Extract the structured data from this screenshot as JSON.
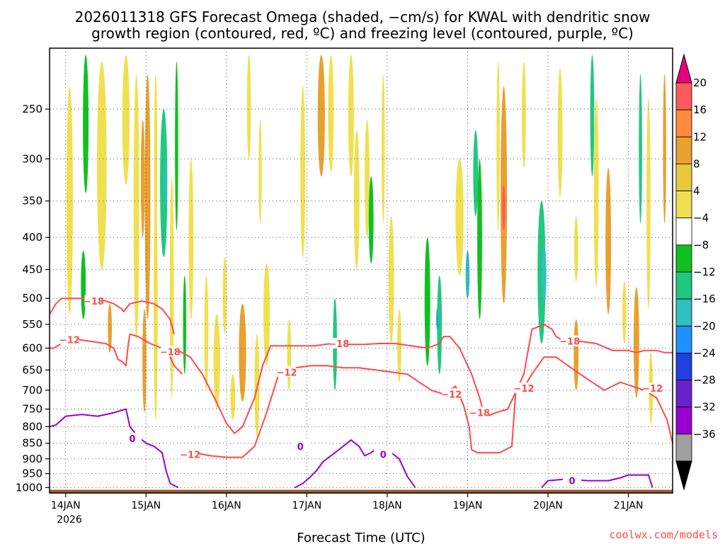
{
  "chart_data": {
    "type": "heatmap",
    "title_line1": "2026011318 GFS Forecast Omega (shaded, −cm/s) for KWAL with dendritic snow",
    "title_line2": "growth region (contoured, red, ºC) and freezing level (contoured, purple, ºC)",
    "xlabel": "Forecast Time (UTC)",
    "x_ticks": [
      "14JAN",
      "15JAN",
      "16JAN",
      "17JAN",
      "18JAN",
      "19JAN",
      "20JAN",
      "21JAN"
    ],
    "x_year": "2026",
    "x_range_days": [
      -0.2,
      7.55
    ],
    "y_ticks": [
      "250",
      "300",
      "350",
      "400",
      "450",
      "500",
      "550",
      "600",
      "650",
      "700",
      "750",
      "800",
      "850",
      "900",
      "950",
      "1000"
    ],
    "y_values": [
      250,
      300,
      350,
      400,
      450,
      500,
      550,
      600,
      650,
      700,
      750,
      800,
      850,
      900,
      950,
      1000
    ],
    "y_range_hpa": [
      200,
      1020
    ],
    "colorbar": {
      "labels": [
        "20",
        "16",
        "12",
        "8",
        "4",
        "−4",
        "−8",
        "−12",
        "−16",
        "−20",
        "−24",
        "−28",
        "−32",
        "−36"
      ],
      "colors": [
        "#ff5a5a",
        "#ff8a3c",
        "#e8a030",
        "#e8c83c",
        "#f0e050",
        "#ffffff",
        "#10c020",
        "#20c880",
        "#30c0c0",
        "#1e90ff",
        "#2040e0",
        "#6a20c8",
        "#9a00d0",
        "#a0a0a0"
      ],
      "top_color": "#e6007e",
      "bottom_color": "#000000"
    },
    "shading": [
      {
        "x": 0.05,
        "p": 380,
        "w": 0.08,
        "h": 300,
        "v": 6
      },
      {
        "x": 0.25,
        "p": 270,
        "w": 0.07,
        "h": 140,
        "v": -6
      },
      {
        "x": 0.22,
        "p": 480,
        "w": 0.06,
        "h": 120,
        "v": -6
      },
      {
        "x": 0.45,
        "p": 330,
        "w": 0.12,
        "h": 240,
        "v": 6
      },
      {
        "x": 0.55,
        "p": 560,
        "w": 0.05,
        "h": 100,
        "v": 10
      },
      {
        "x": 0.75,
        "p": 260,
        "w": 0.09,
        "h": 140,
        "v": 6
      },
      {
        "x": 0.88,
        "p": 400,
        "w": 0.07,
        "h": 360,
        "v": 6
      },
      {
        "x": 0.96,
        "p": 330,
        "w": 0.05,
        "h": 140,
        "v": 10
      },
      {
        "x": 1.02,
        "p": 380,
        "w": 0.07,
        "h": 320,
        "v": 10
      },
      {
        "x": 0.98,
        "p": 640,
        "w": 0.05,
        "h": 240,
        "v": 10
      },
      {
        "x": 1.12,
        "p": 320,
        "w": 0.04,
        "h": 200,
        "v": 6
      },
      {
        "x": 1.22,
        "p": 340,
        "w": 0.09,
        "h": 180,
        "v": -8
      },
      {
        "x": 1.24,
        "p": 330,
        "w": 0.03,
        "h": 60,
        "v": -13
      },
      {
        "x": 1.12,
        "p": 560,
        "w": 0.05,
        "h": 440,
        "v": 6
      },
      {
        "x": 1.32,
        "p": 520,
        "w": 0.05,
        "h": 400,
        "v": 6
      },
      {
        "x": 1.38,
        "p": 300,
        "w": 0.04,
        "h": 180,
        "v": -6
      },
      {
        "x": 1.48,
        "p": 560,
        "w": 0.04,
        "h": 200,
        "v": -6
      },
      {
        "x": 1.56,
        "p": 420,
        "w": 0.06,
        "h": 240,
        "v": 6
      },
      {
        "x": 1.75,
        "p": 580,
        "w": 0.05,
        "h": 240,
        "v": 6
      },
      {
        "x": 1.88,
        "p": 640,
        "w": 0.08,
        "h": 220,
        "v": 6
      },
      {
        "x": 1.98,
        "p": 500,
        "w": 0.05,
        "h": 140,
        "v": 6
      },
      {
        "x": 2.08,
        "p": 720,
        "w": 0.06,
        "h": 120,
        "v": 6
      },
      {
        "x": 2.2,
        "p": 620,
        "w": 0.09,
        "h": 220,
        "v": 10
      },
      {
        "x": 2.28,
        "p": 240,
        "w": 0.05,
        "h": 120,
        "v": 6
      },
      {
        "x": 2.42,
        "p": 320,
        "w": 0.04,
        "h": 120,
        "v": 6
      },
      {
        "x": 2.38,
        "p": 700,
        "w": 0.06,
        "h": 260,
        "v": 6
      },
      {
        "x": 2.5,
        "p": 540,
        "w": 0.08,
        "h": 200,
        "v": 6
      },
      {
        "x": 2.78,
        "p": 620,
        "w": 0.05,
        "h": 160,
        "v": 6
      },
      {
        "x": 2.95,
        "p": 330,
        "w": 0.06,
        "h": 200,
        "v": 6
      },
      {
        "x": 3.18,
        "p": 260,
        "w": 0.09,
        "h": 120,
        "v": 10
      },
      {
        "x": 3.3,
        "p": 240,
        "w": 0.07,
        "h": 150,
        "v": 6
      },
      {
        "x": 3.35,
        "p": 600,
        "w": 0.05,
        "h": 200,
        "v": -8
      },
      {
        "x": 3.55,
        "p": 260,
        "w": 0.07,
        "h": 120,
        "v": 6
      },
      {
        "x": 3.62,
        "p": 360,
        "w": 0.07,
        "h": 180,
        "v": 6
      },
      {
        "x": 3.75,
        "p": 330,
        "w": 0.06,
        "h": 140,
        "v": 6
      },
      {
        "x": 3.8,
        "p": 380,
        "w": 0.06,
        "h": 120,
        "v": -7
      },
      {
        "x": 3.95,
        "p": 300,
        "w": 0.04,
        "h": 160,
        "v": 6
      },
      {
        "x": 4.05,
        "p": 480,
        "w": 0.07,
        "h": 220,
        "v": 6
      },
      {
        "x": 4.15,
        "p": 600,
        "w": 0.05,
        "h": 160,
        "v": 6
      },
      {
        "x": 4.5,
        "p": 520,
        "w": 0.07,
        "h": 240,
        "v": -7
      },
      {
        "x": 4.65,
        "p": 560,
        "w": 0.06,
        "h": 200,
        "v": -8
      },
      {
        "x": 4.62,
        "p": 540,
        "w": 0.02,
        "h": 40,
        "v": -17
      },
      {
        "x": 4.9,
        "p": 380,
        "w": 0.1,
        "h": 160,
        "v": 6
      },
      {
        "x": 5.1,
        "p": 320,
        "w": 0.06,
        "h": 100,
        "v": -8
      },
      {
        "x": 5.15,
        "p": 420,
        "w": 0.06,
        "h": 240,
        "v": -7
      },
      {
        "x": 5.0,
        "p": 460,
        "w": 0.05,
        "h": 80,
        "v": -13
      },
      {
        "x": 5.45,
        "p": 370,
        "w": 0.08,
        "h": 280,
        "v": 10
      },
      {
        "x": 5.45,
        "p": 360,
        "w": 0.04,
        "h": 60,
        "v": 18
      },
      {
        "x": 5.38,
        "p": 300,
        "w": 0.04,
        "h": 180,
        "v": 6
      },
      {
        "x": 5.7,
        "p": 260,
        "w": 0.05,
        "h": 100,
        "v": 6
      },
      {
        "x": 5.92,
        "p": 470,
        "w": 0.1,
        "h": 240,
        "v": -8
      },
      {
        "x": 5.95,
        "p": 460,
        "w": 0.06,
        "h": 100,
        "v": -13
      },
      {
        "x": 6.15,
        "p": 280,
        "w": 0.06,
        "h": 130,
        "v": 6
      },
      {
        "x": 6.35,
        "p": 420,
        "w": 0.05,
        "h": 100,
        "v": 6
      },
      {
        "x": 6.35,
        "p": 620,
        "w": 0.06,
        "h": 160,
        "v": 10
      },
      {
        "x": 6.55,
        "p": 260,
        "w": 0.05,
        "h": 120,
        "v": -8
      },
      {
        "x": 6.6,
        "p": 360,
        "w": 0.06,
        "h": 240,
        "v": 6
      },
      {
        "x": 6.75,
        "p": 420,
        "w": 0.07,
        "h": 220,
        "v": 10
      },
      {
        "x": 6.95,
        "p": 530,
        "w": 0.05,
        "h": 120,
        "v": 6
      },
      {
        "x": 7.1,
        "p": 600,
        "w": 0.07,
        "h": 240,
        "v": 10
      },
      {
        "x": 7.15,
        "p": 300,
        "w": 0.04,
        "h": 160,
        "v": -8
      },
      {
        "x": 7.25,
        "p": 380,
        "w": 0.05,
        "h": 280,
        "v": 6
      },
      {
        "x": 7.28,
        "p": 700,
        "w": 0.05,
        "h": 180,
        "v": 6
      },
      {
        "x": 7.45,
        "p": 300,
        "w": 0.04,
        "h": 160,
        "v": 10
      }
    ],
    "contours": [
      {
        "level": "-18",
        "color": "#ff4a4a",
        "x": [
          -0.2,
          -0.12,
          -0.05,
          0.1,
          0.3,
          0.5,
          0.6,
          0.7,
          0.72,
          0.8,
          0.95,
          1.1,
          1.2,
          1.3,
          1.35
        ],
        "p": [
          530,
          510,
          500,
          500,
          500,
          505,
          510,
          520,
          525,
          510,
          505,
          510,
          520,
          540,
          570
        ]
      },
      {
        "level": "-12",
        "color": "#ff4a4a",
        "x": [
          -0.2,
          -0.15,
          -0.05,
          0.1,
          0.3,
          0.5,
          0.6,
          0.62,
          0.65,
          0.7,
          0.75,
          0.78,
          0.8,
          0.9,
          1.05,
          1.2,
          1.3,
          1.35,
          1.45
        ],
        "p": [
          600,
          600,
          590,
          580,
          585,
          590,
          600,
          610,
          625,
          630,
          640,
          590,
          570,
          575,
          590,
          600,
          620,
          640,
          660
        ]
      },
      {
        "level": "-18",
        "color": "#ff4a4a",
        "x": [
          1.35,
          1.55,
          1.7,
          1.85,
          2.0,
          2.1,
          2.2,
          2.35,
          2.45,
          2.55,
          2.7,
          2.9,
          3.1,
          3.3,
          3.5,
          3.7,
          3.9,
          4.1,
          4.3,
          4.5,
          4.65,
          4.7,
          4.78,
          4.9,
          5.05,
          5.15,
          5.2,
          5.25,
          5.35,
          5.5,
          5.7,
          5.8,
          5.95,
          6.05,
          6.1,
          6.2,
          6.4,
          6.6,
          6.8,
          7.0,
          7.1,
          7.2,
          7.35,
          7.45,
          7.55
        ],
        "p": [
          600,
          620,
          660,
          720,
          790,
          820,
          800,
          720,
          640,
          595,
          595,
          595,
          595,
          590,
          592,
          592,
          590,
          590,
          595,
          600,
          590,
          575,
          575,
          600,
          660,
          720,
          760,
          770,
          760,
          750,
          660,
          560,
          550,
          560,
          575,
          585,
          585,
          590,
          605,
          605,
          610,
          605,
          605,
          610,
          610
        ]
      },
      {
        "level": "-12",
        "color": "#ff4a4a",
        "x": [
          1.6,
          1.8,
          2.0,
          2.2,
          2.35,
          2.5,
          2.65,
          2.85,
          3.05,
          3.25,
          3.45,
          3.65,
          3.85,
          4.05,
          4.25,
          4.4,
          4.55,
          4.7,
          4.85,
          4.95,
          5.02,
          5.05,
          5.12,
          5.2,
          5.4,
          5.55,
          5.6,
          5.68,
          5.8,
          5.95,
          6.1,
          6.25,
          6.4,
          6.55,
          6.7,
          6.9,
          7.05,
          7.2,
          7.35,
          7.48,
          7.55
        ],
        "p": [
          880,
          890,
          895,
          895,
          860,
          760,
          660,
          645,
          640,
          640,
          645,
          645,
          650,
          655,
          660,
          680,
          700,
          710,
          690,
          740,
          800,
          870,
          880,
          880,
          880,
          860,
          700,
          700,
          660,
          620,
          620,
          640,
          660,
          680,
          700,
          680,
          690,
          700,
          720,
          780,
          850
        ]
      },
      {
        "level": "0",
        "color": "#9a00d0",
        "x": [
          -0.2,
          -0.12,
          0.0,
          0.2,
          0.4,
          0.6,
          0.75,
          0.8,
          0.9,
          1.0,
          1.1,
          1.2,
          1.25,
          1.3,
          1.4
        ],
        "p": [
          800,
          795,
          770,
          765,
          770,
          760,
          750,
          800,
          830,
          850,
          860,
          880,
          940,
          985,
          1000
        ]
      },
      {
        "level": "0",
        "color": "#9a00d0",
        "x": [
          2.85,
          2.95,
          3.05,
          3.12,
          3.2,
          3.35,
          3.45,
          3.55,
          3.65,
          3.72,
          3.8,
          3.85,
          3.9,
          4.05,
          4.15,
          4.25,
          4.35
        ],
        "p": [
          1000,
          985,
          960,
          940,
          910,
          880,
          860,
          840,
          860,
          890,
          880,
          870,
          885,
          880,
          900,
          960,
          1000
        ]
      },
      {
        "level": "0",
        "color": "#9a00d0",
        "x": [
          5.92,
          6.0,
          6.2,
          6.5,
          6.75,
          6.9,
          7.0,
          7.25,
          7.3
        ],
        "p": [
          1000,
          975,
          970,
          975,
          975,
          965,
          955,
          955,
          1000
        ]
      }
    ],
    "contour_labels": [
      {
        "text": "−18",
        "color": "#ff4a4a",
        "x": 0.35,
        "p": 505
      },
      {
        "text": "−12",
        "color": "#ff4a4a",
        "x": 0.05,
        "p": 582
      },
      {
        "text": "−18",
        "color": "#ff4a4a",
        "x": 1.3,
        "p": 608
      },
      {
        "text": "−12",
        "color": "#ff4a4a",
        "x": 1.55,
        "p": 885
      },
      {
        "text": "−12",
        "color": "#ff4a4a",
        "x": 2.75,
        "p": 655
      },
      {
        "text": "−18",
        "color": "#ff4a4a",
        "x": 3.4,
        "p": 590
      },
      {
        "text": "−12",
        "color": "#ff4a4a",
        "x": 4.8,
        "p": 710
      },
      {
        "text": "−18",
        "color": "#ff4a4a",
        "x": 5.15,
        "p": 760
      },
      {
        "text": "−12",
        "color": "#ff4a4a",
        "x": 5.7,
        "p": 695
      },
      {
        "text": "−18",
        "color": "#ff4a4a",
        "x": 6.27,
        "p": 585
      },
      {
        "text": "−12",
        "color": "#ff4a4a",
        "x": 7.3,
        "p": 695
      },
      {
        "text": "0",
        "color": "#9a00d0",
        "x": 0.83,
        "p": 835
      },
      {
        "text": "0",
        "color": "#9a00d0",
        "x": 2.92,
        "p": 860
      },
      {
        "text": "0",
        "color": "#9a00d0",
        "x": 3.95,
        "p": 885
      },
      {
        "text": "0",
        "color": "#9a00d0",
        "x": 6.3,
        "p": 975
      }
    ],
    "ground_color": "#9a5a30"
  },
  "credit": "coolwx.com/models"
}
